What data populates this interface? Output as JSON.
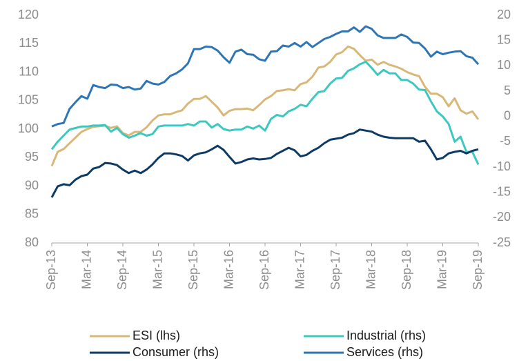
{
  "chart_data": {
    "type": "line",
    "categories": [
      "Sep-13",
      null,
      null,
      null,
      null,
      null,
      "Mar-14",
      null,
      null,
      null,
      null,
      null,
      "Sep-14",
      null,
      null,
      null,
      null,
      null,
      "Mar-15",
      null,
      null,
      null,
      null,
      null,
      "Sep-15",
      null,
      null,
      null,
      null,
      null,
      "Mar-16",
      null,
      null,
      null,
      null,
      null,
      "Sep-16",
      null,
      null,
      null,
      null,
      null,
      "Mar-17",
      null,
      null,
      null,
      null,
      null,
      "Sep-17",
      null,
      null,
      null,
      null,
      null,
      "Mar-18",
      null,
      null,
      null,
      null,
      null,
      "Sep-18",
      null,
      null,
      null,
      null,
      null,
      "Mar-19",
      null,
      null,
      null,
      null,
      null,
      "Sep-19"
    ],
    "ylim": [
      80,
      120
    ],
    "yticks": [
      80,
      85,
      90,
      95,
      100,
      105,
      110,
      115,
      120
    ],
    "y2lim": [
      -25,
      20
    ],
    "y2ticks": [
      -25,
      -20,
      -15,
      -10,
      -5,
      0,
      5,
      10,
      15,
      20
    ],
    "grid": false,
    "legend": "bottom",
    "series": [
      {
        "name": "ESI (lhs)",
        "color": "#d8b878",
        "values": [
          93.5,
          96,
          96.5,
          97.5,
          98.5,
          99.5,
          100,
          100.4,
          100.5,
          100.6,
          100.2,
          100.5,
          99.3,
          98.9,
          99.5,
          99.5,
          100.3,
          101.5,
          102.4,
          102.6,
          102.6,
          103,
          103.3,
          104.5,
          105.3,
          105.3,
          105.8,
          104.8,
          103.8,
          102.4,
          103.2,
          103.5,
          103.5,
          103.6,
          103.3,
          104.2,
          105.2,
          105.8,
          106.7,
          106.8,
          107,
          106.8,
          107.9,
          108.2,
          109.2,
          110.8,
          111,
          111.8,
          113.1,
          113.5,
          114.5,
          114.1,
          113,
          112,
          112.2,
          111.3,
          111.8,
          111.3,
          111,
          110.6,
          110,
          109.6,
          109.3,
          107.4,
          106.2,
          106.2,
          105.6,
          104,
          105.4,
          103.3,
          102.7,
          103.1,
          101.7
        ]
      },
      {
        "name": "Industrial (rhs)",
        "color": "#3cc8c0",
        "axis": "y2",
        "values": [
          -6.5,
          -5,
          -3.8,
          -2.6,
          -2.3,
          -2,
          -2,
          -1.8,
          -1.8,
          -1.7,
          -3,
          -2.3,
          -3.5,
          -4.2,
          -3.8,
          -3.3,
          -3.8,
          -3.5,
          -2,
          -1.8,
          -1.8,
          -1.8,
          -1.8,
          -1.5,
          -1.8,
          -1,
          -1,
          -2.2,
          -1.5,
          -2.5,
          -2.8,
          -2.6,
          -2.6,
          -2,
          -2.4,
          -1.8,
          -2.8,
          -0.5,
          0.3,
          0,
          1,
          1.5,
          2.3,
          2,
          3.5,
          4.8,
          5,
          6.5,
          7.5,
          7.6,
          9,
          9.5,
          10.3,
          10.8,
          9.6,
          8.2,
          9.2,
          8.5,
          8.5,
          7.2,
          7.2,
          6.5,
          5.3,
          5.2,
          3,
          1,
          0,
          -1.5,
          -5,
          -4,
          -7,
          -7,
          -9.5
        ]
      },
      {
        "name": "Consumer (rhs)",
        "color": "#0e3a66",
        "axis": "y2",
        "values": [
          -16,
          -13.8,
          -13.4,
          -13.6,
          -12.5,
          -11.8,
          -11.5,
          -10.3,
          -10,
          -9.2,
          -9.3,
          -9.6,
          -10.5,
          -11.2,
          -10.7,
          -11.2,
          -10.5,
          -9.5,
          -8.2,
          -7.3,
          -7.3,
          -7.5,
          -7.8,
          -8.7,
          -7.7,
          -7.3,
          -7.1,
          -6.5,
          -5.8,
          -6.6,
          -8,
          -9.3,
          -9,
          -8.5,
          -8.3,
          -8.5,
          -8.4,
          -8.2,
          -7.4,
          -6.8,
          -6.2,
          -6.7,
          -7.9,
          -7.6,
          -6.8,
          -6.2,
          -5.3,
          -4.6,
          -4.4,
          -4.2,
          -3.6,
          -3.3,
          -2.6,
          -2.8,
          -3,
          -3.6,
          -4,
          -4.2,
          -4.3,
          -4.3,
          -4.3,
          -4.3,
          -5,
          -4.8,
          -6.5,
          -8.5,
          -8.2,
          -7.3,
          -7,
          -6.8,
          -7.3,
          -6.8,
          -6.5
        ]
      },
      {
        "name": "Services (rhs)",
        "color": "#2e75b6",
        "axis": "y2",
        "values": [
          -2,
          -1.5,
          -1.3,
          1.5,
          2.8,
          4,
          3.5,
          6.2,
          5.8,
          5.6,
          6.3,
          6.2,
          5.6,
          5.8,
          5.3,
          5.5,
          7,
          6.5,
          6.3,
          6.8,
          8,
          8.5,
          9.3,
          10.5,
          13.3,
          13.3,
          13.8,
          13.7,
          13,
          11.7,
          10.6,
          12.8,
          13.2,
          12.3,
          12.2,
          11.3,
          11,
          12.8,
          12.9,
          14,
          13.8,
          14.5,
          13.8,
          14.7,
          13.7,
          14.5,
          15.3,
          15.7,
          16.3,
          16.8,
          16.8,
          17.6,
          16.7,
          17.8,
          17.3,
          16,
          15.5,
          15.5,
          15.5,
          16.2,
          15.7,
          14.6,
          14.5,
          13.4,
          11.8,
          12.8,
          12.3,
          12.6,
          12.8,
          12.9,
          11.9,
          11.6,
          10.3
        ]
      }
    ]
  }
}
